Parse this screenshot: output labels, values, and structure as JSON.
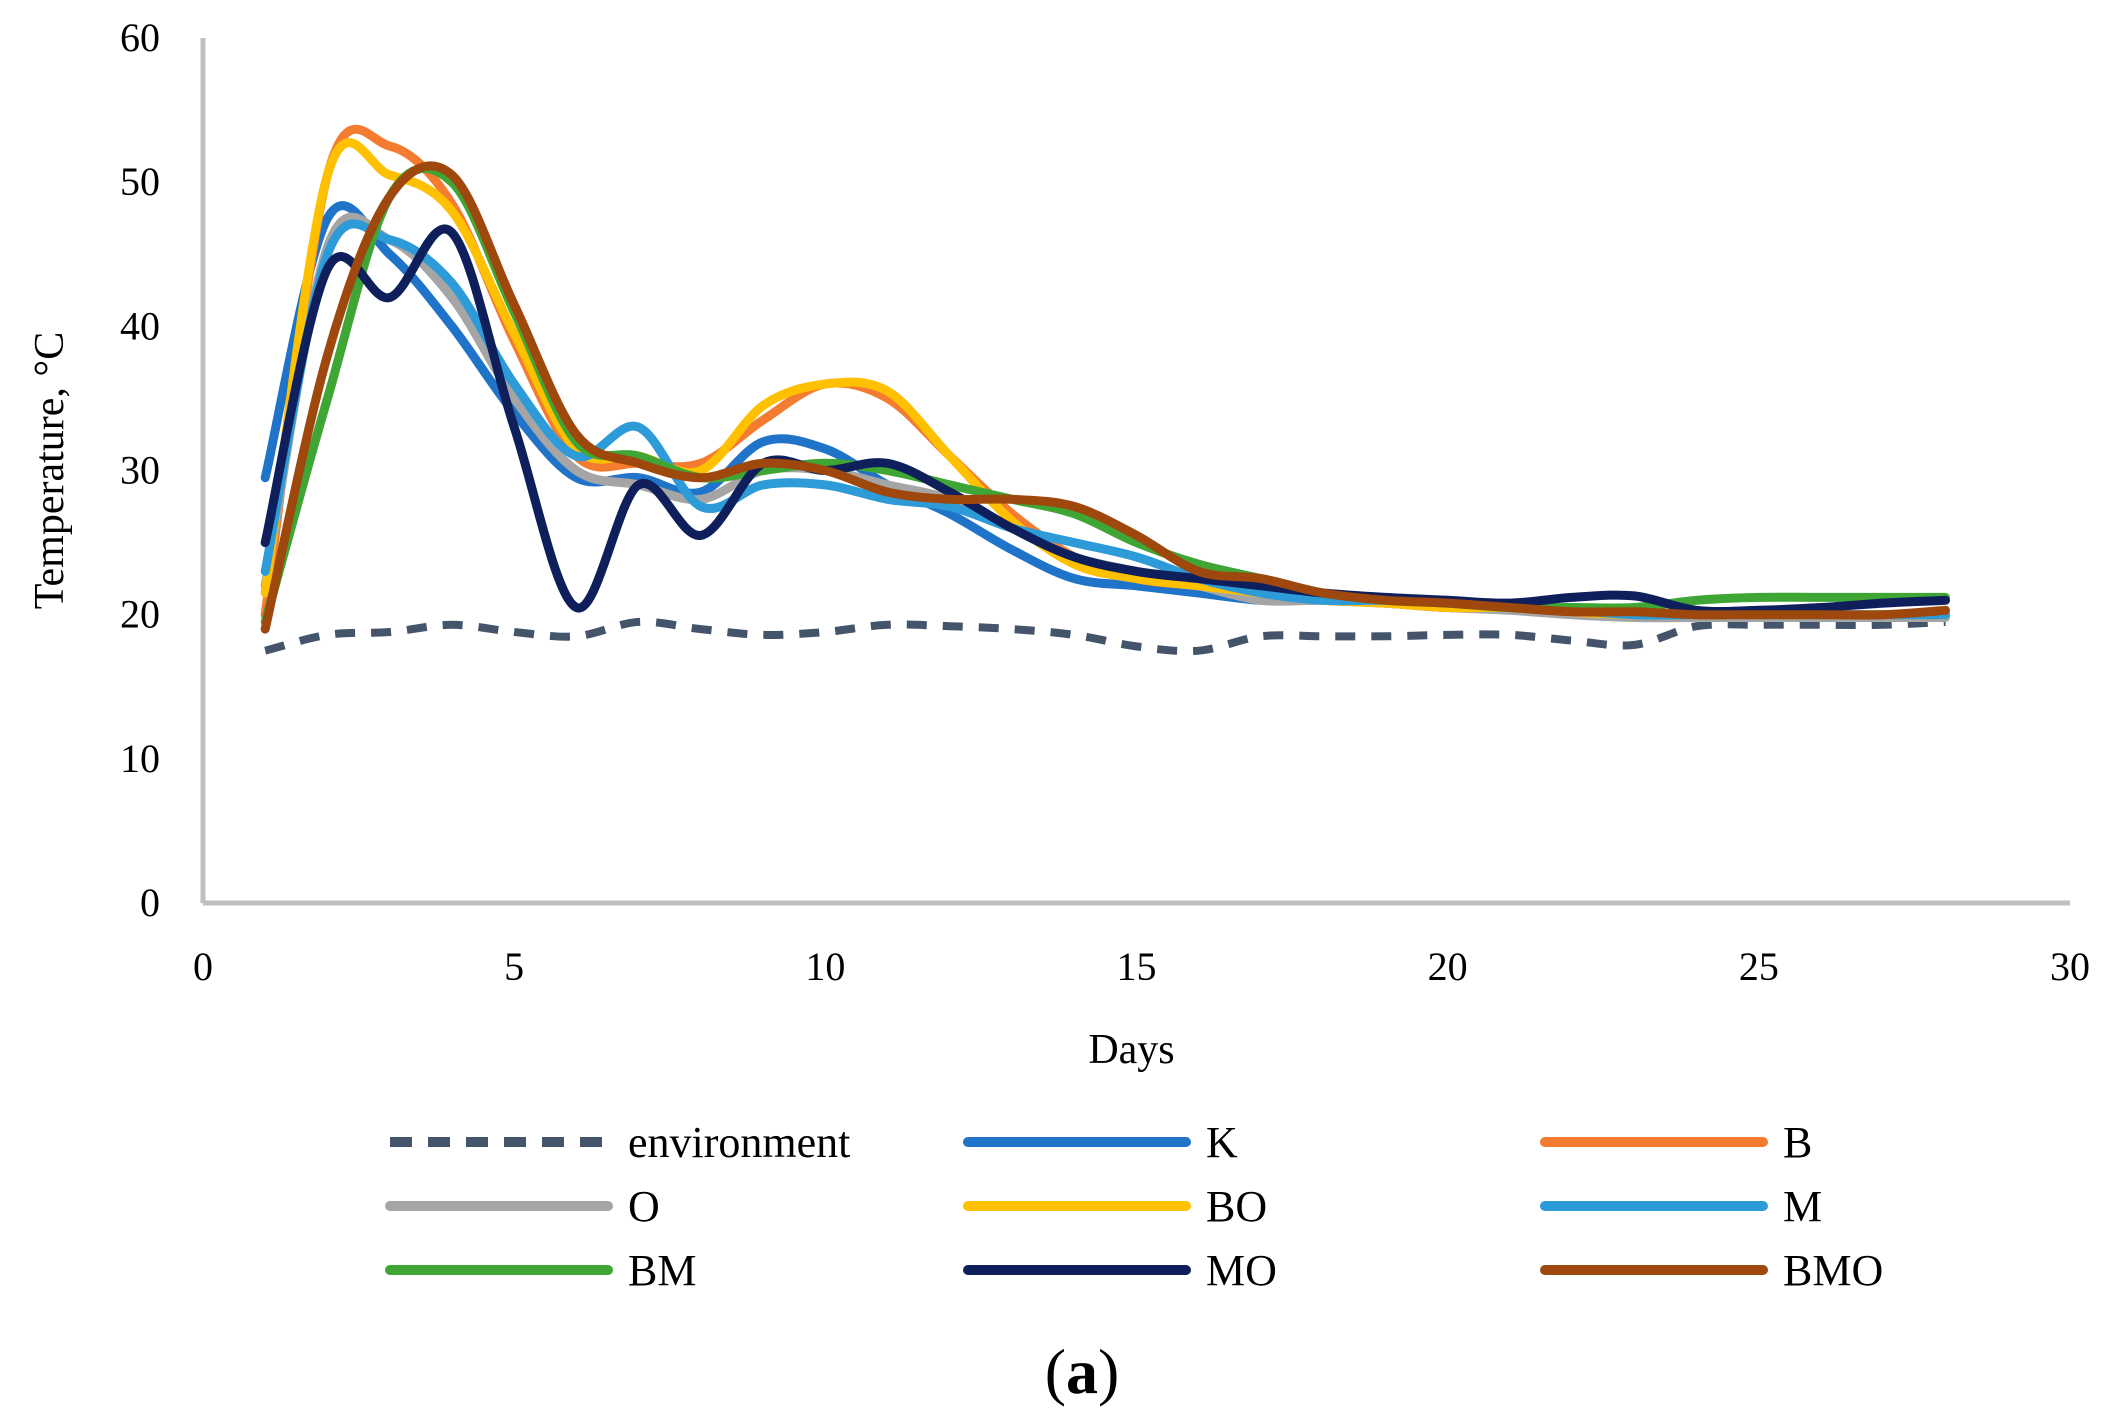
{
  "chart_data": {
    "type": "line",
    "xlabel": "Days",
    "ylabel": "Temperature, °C",
    "xlim": [
      0,
      30
    ],
    "ylim": [
      0,
      60
    ],
    "xticks": [
      0,
      5,
      10,
      15,
      20,
      25,
      30
    ],
    "yticks": [
      0,
      10,
      20,
      30,
      40,
      50,
      60
    ],
    "grid": false,
    "legend_position": "bottom",
    "panel_label": "(a)",
    "series": [
      {
        "name": "environment",
        "color": "#44546A",
        "dashed": true,
        "x": [
          1,
          2,
          3,
          4,
          5,
          6,
          7,
          8,
          9,
          10,
          11,
          12,
          13,
          14,
          15,
          16,
          17,
          18,
          19,
          20,
          21,
          22,
          23,
          24,
          25,
          26,
          27,
          28
        ],
        "y": [
          17.5,
          18.6,
          18.8,
          19.3,
          18.8,
          18.5,
          19.5,
          19.0,
          18.6,
          18.8,
          19.3,
          19.2,
          19.0,
          18.6,
          17.8,
          17.5,
          18.5,
          18.5,
          18.5,
          18.6,
          18.6,
          18.2,
          17.9,
          19.2,
          19.3,
          19.3,
          19.3,
          19.5
        ]
      },
      {
        "name": "K",
        "color": "#1F73C8",
        "dashed": false,
        "x": [
          1,
          2,
          3,
          4,
          5,
          6,
          7,
          8,
          9,
          10,
          11,
          12,
          13,
          14,
          15,
          16,
          17,
          18,
          19,
          20,
          21,
          22,
          23,
          24,
          25,
          26,
          27,
          28
        ],
        "y": [
          29.5,
          47.5,
          45.0,
          40.0,
          34.0,
          29.5,
          29.5,
          28.5,
          32.0,
          31.5,
          29.0,
          27.0,
          24.5,
          22.5,
          22.0,
          21.5,
          21.0,
          21.0,
          20.8,
          20.5,
          20.5,
          20.2,
          20.0,
          20.0,
          20.0,
          20.0,
          20.0,
          20.0
        ]
      },
      {
        "name": "B",
        "color": "#F47C30",
        "dashed": false,
        "x": [
          1,
          2,
          3,
          4,
          5,
          6,
          7,
          8,
          9,
          10,
          11,
          12,
          13,
          14,
          15,
          16,
          17,
          18,
          19,
          20,
          21,
          22,
          23,
          24,
          25,
          26,
          27,
          28
        ],
        "y": [
          20.0,
          50.5,
          52.5,
          48.5,
          39.0,
          31.0,
          30.5,
          30.5,
          33.5,
          36.0,
          35.0,
          31.0,
          27.0,
          24.0,
          22.5,
          22.0,
          21.5,
          21.0,
          20.8,
          20.5,
          20.5,
          20.2,
          20.0,
          20.0,
          20.0,
          20.0,
          20.0,
          20.0
        ]
      },
      {
        "name": "O",
        "color": "#A5A5A5",
        "dashed": false,
        "x": [
          1,
          2,
          3,
          4,
          5,
          6,
          7,
          8,
          9,
          10,
          11,
          12,
          13,
          14,
          15,
          16,
          17,
          18,
          19,
          20,
          21,
          22,
          23,
          24,
          25,
          26,
          27,
          28
        ],
        "y": [
          22.0,
          45.5,
          46.0,
          42.0,
          35.0,
          30.0,
          29.0,
          28.0,
          30.0,
          30.0,
          29.0,
          28.0,
          26.0,
          24.0,
          23.0,
          22.0,
          21.0,
          21.0,
          20.8,
          20.5,
          20.3,
          20.0,
          19.8,
          19.8,
          19.8,
          19.8,
          19.8,
          19.8
        ]
      },
      {
        "name": "BO",
        "color": "#FFC000",
        "dashed": false,
        "x": [
          1,
          2,
          3,
          4,
          5,
          6,
          7,
          8,
          9,
          10,
          11,
          12,
          13,
          14,
          15,
          16,
          17,
          18,
          19,
          20,
          21,
          22,
          23,
          24,
          25,
          26,
          27,
          28
        ],
        "y": [
          21.5,
          50.5,
          50.5,
          48.0,
          39.5,
          31.5,
          31.0,
          30.0,
          34.5,
          36.0,
          35.5,
          31.0,
          26.5,
          23.5,
          22.5,
          22.0,
          21.5,
          21.0,
          20.8,
          20.5,
          20.5,
          20.2,
          20.0,
          20.0,
          20.0,
          20.0,
          20.0,
          20.0
        ]
      },
      {
        "name": "M",
        "color": "#2E9BD9",
        "dashed": false,
        "x": [
          1,
          2,
          3,
          4,
          5,
          6,
          7,
          8,
          9,
          10,
          11,
          12,
          13,
          14,
          15,
          16,
          17,
          18,
          19,
          20,
          21,
          22,
          23,
          24,
          25,
          26,
          27,
          28
        ],
        "y": [
          23.0,
          45.0,
          46.0,
          43.0,
          36.0,
          31.0,
          33.0,
          27.5,
          29.0,
          29.0,
          28.0,
          27.5,
          26.0,
          25.0,
          24.0,
          22.5,
          21.5,
          21.0,
          21.0,
          20.8,
          20.5,
          20.3,
          20.0,
          20.0,
          20.0,
          20.0,
          20.0,
          20.0
        ]
      },
      {
        "name": "BM",
        "color": "#3FA535",
        "dashed": false,
        "x": [
          1,
          2,
          3,
          4,
          5,
          6,
          7,
          8,
          9,
          10,
          11,
          12,
          13,
          14,
          15,
          16,
          17,
          18,
          19,
          20,
          21,
          22,
          23,
          24,
          25,
          26,
          27,
          28
        ],
        "y": [
          19.5,
          35.0,
          49.0,
          50.0,
          41.0,
          32.0,
          31.0,
          29.5,
          30.0,
          30.5,
          30.0,
          29.0,
          28.0,
          27.0,
          25.0,
          23.5,
          22.5,
          21.5,
          21.0,
          20.8,
          20.5,
          20.5,
          20.5,
          21.0,
          21.2,
          21.2,
          21.2,
          21.2
        ]
      },
      {
        "name": "MO",
        "color": "#0E1F5B",
        "dashed": false,
        "x": [
          1,
          2,
          3,
          4,
          5,
          6,
          7,
          8,
          9,
          10,
          11,
          12,
          13,
          14,
          15,
          16,
          17,
          18,
          19,
          20,
          21,
          22,
          23,
          24,
          25,
          26,
          27,
          28
        ],
        "y": [
          25.0,
          44.0,
          42.0,
          46.5,
          33.0,
          20.5,
          29.0,
          25.5,
          30.5,
          30.0,
          30.5,
          28.5,
          26.0,
          24.0,
          23.0,
          22.5,
          22.0,
          21.5,
          21.2,
          21.0,
          20.8,
          21.2,
          21.3,
          20.3,
          20.3,
          20.5,
          20.8,
          21.0
        ]
      },
      {
        "name": "BMO",
        "color": "#9E480E",
        "dashed": false,
        "x": [
          1,
          2,
          3,
          4,
          5,
          6,
          7,
          8,
          9,
          10,
          11,
          12,
          13,
          14,
          15,
          16,
          17,
          18,
          19,
          20,
          21,
          22,
          23,
          24,
          25,
          26,
          27,
          28
        ],
        "y": [
          19.0,
          38.0,
          49.0,
          50.5,
          41.5,
          32.5,
          30.5,
          29.5,
          30.5,
          30.0,
          28.5,
          28.0,
          28.0,
          27.5,
          25.5,
          23.0,
          22.5,
          21.5,
          21.0,
          20.8,
          20.5,
          20.2,
          20.2,
          20.0,
          20.0,
          20.0,
          20.0,
          20.3
        ]
      }
    ]
  }
}
